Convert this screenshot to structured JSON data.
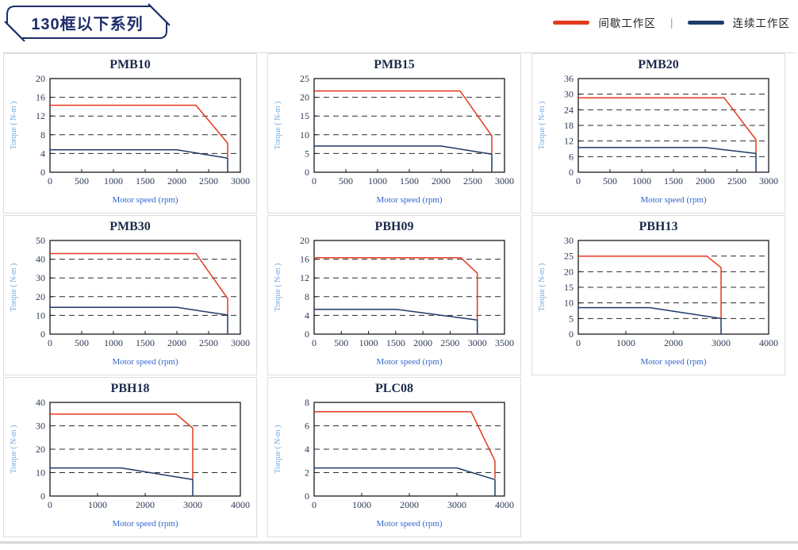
{
  "header": {
    "series_badge": "130框以下系列",
    "legend": {
      "items": [
        {
          "name": "intermittent-zone",
          "label": "间歇工作区",
          "color": "#e23a1f"
        },
        {
          "name": "continuous-zone",
          "label": "连续工作区",
          "color": "#1f3a68"
        }
      ],
      "separator": "|"
    }
  },
  "chart_data": [
    {
      "type": "line",
      "title": "PMB10",
      "xlabel": "Motor speed (rpm)",
      "ylabel": "Torque ( N-m )",
      "xlim": [
        0,
        3000
      ],
      "xticks": [
        0,
        500,
        1000,
        1500,
        2000,
        2500,
        3000
      ],
      "ylim": [
        0,
        20
      ],
      "yticks": [
        0,
        4,
        8,
        12,
        16,
        20
      ],
      "grid": "dashed-horizontal",
      "legend_position": "none",
      "series": [
        {
          "name": "间歇工作区",
          "color": "#e23a1f",
          "points": [
            [
              0,
              14.3
            ],
            [
              2300,
              14.3
            ],
            [
              2800,
              6.2
            ],
            [
              2800,
              3.2
            ]
          ]
        },
        {
          "name": "连续工作区",
          "color": "#1f3a68",
          "points": [
            [
              0,
              4.8
            ],
            [
              2000,
              4.8
            ],
            [
              2800,
              3.0
            ],
            [
              2800,
              0
            ]
          ]
        }
      ]
    },
    {
      "type": "line",
      "title": "PMB15",
      "xlabel": "Motor speed (rpm)",
      "ylabel": "Torque ( N-m )",
      "xlim": [
        0,
        3000
      ],
      "xticks": [
        0,
        500,
        1000,
        1500,
        2000,
        2500,
        3000
      ],
      "ylim": [
        0,
        25
      ],
      "yticks": [
        0,
        5,
        10,
        15,
        20,
        25
      ],
      "grid": "dashed-horizontal",
      "legend_position": "none",
      "series": [
        {
          "name": "间歇工作区",
          "color": "#e23a1f",
          "points": [
            [
              0,
              21.7
            ],
            [
              2300,
              21.7
            ],
            [
              2800,
              9.7
            ],
            [
              2800,
              5.0
            ]
          ]
        },
        {
          "name": "连续工作区",
          "color": "#1f3a68",
          "points": [
            [
              0,
              7.0
            ],
            [
              2000,
              7.0
            ],
            [
              2800,
              4.8
            ],
            [
              2800,
              0
            ]
          ]
        }
      ]
    },
    {
      "type": "line",
      "title": "PMB20",
      "xlabel": "Motor speed (rpm)",
      "ylabel": "Torque ( N-m )",
      "xlim": [
        0,
        3000
      ],
      "xticks": [
        0,
        500,
        1000,
        1500,
        2000,
        2500,
        3000
      ],
      "ylim": [
        0,
        36
      ],
      "yticks": [
        0,
        6,
        12,
        18,
        24,
        30,
        36
      ],
      "grid": "dashed-horizontal",
      "legend_position": "none",
      "series": [
        {
          "name": "间歇工作区",
          "color": "#e23a1f",
          "points": [
            [
              0,
              28.6
            ],
            [
              2300,
              28.6
            ],
            [
              2800,
              12.5
            ],
            [
              2800,
              7.3
            ]
          ]
        },
        {
          "name": "连续工作区",
          "color": "#1f3a68",
          "points": [
            [
              0,
              9.5
            ],
            [
              2000,
              9.5
            ],
            [
              2800,
              7.2
            ],
            [
              2800,
              0
            ]
          ]
        }
      ]
    },
    {
      "type": "line",
      "title": "PMB30",
      "xlabel": "Motor speed (rpm)",
      "ylabel": "Torque ( N-m )",
      "xlim": [
        0,
        3000
      ],
      "xticks": [
        0,
        500,
        1000,
        1500,
        2000,
        2500,
        3000
      ],
      "ylim": [
        0,
        50
      ],
      "yticks": [
        0,
        10,
        20,
        30,
        40,
        50
      ],
      "grid": "dashed-horizontal",
      "legend_position": "none",
      "series": [
        {
          "name": "间歇工作区",
          "color": "#e23a1f",
          "points": [
            [
              0,
              43.0
            ],
            [
              2300,
              43.0
            ],
            [
              2800,
              19.0
            ],
            [
              2800,
              10.3
            ]
          ]
        },
        {
          "name": "连续工作区",
          "color": "#1f3a68",
          "points": [
            [
              0,
              14.3
            ],
            [
              2000,
              14.3
            ],
            [
              2800,
              10.2
            ],
            [
              2800,
              0
            ]
          ]
        }
      ]
    },
    {
      "type": "line",
      "title": "PBH09",
      "xlabel": "Motor speed (rpm)",
      "ylabel": "Torque ( N-m )",
      "xlim": [
        0,
        3500
      ],
      "xticks": [
        0,
        500,
        1000,
        1500,
        2000,
        2500,
        3000,
        3500
      ],
      "ylim": [
        0,
        20
      ],
      "yticks": [
        0,
        4,
        8,
        12,
        16,
        20
      ],
      "grid": "dashed-horizontal",
      "legend_position": "none",
      "series": [
        {
          "name": "间歇工作区",
          "color": "#e23a1f",
          "points": [
            [
              0,
              16.3
            ],
            [
              2700,
              16.3
            ],
            [
              3000,
              13.0
            ],
            [
              3000,
              3.1
            ]
          ]
        },
        {
          "name": "连续工作区",
          "color": "#1f3a68",
          "points": [
            [
              0,
              5.3
            ],
            [
              1500,
              5.3
            ],
            [
              3000,
              3.0
            ],
            [
              3000,
              0
            ]
          ]
        }
      ]
    },
    {
      "type": "line",
      "title": "PBH13",
      "xlabel": "Motor speed (rpm)",
      "ylabel": "Torque ( N-m )",
      "xlim": [
        0,
        4000
      ],
      "xticks": [
        0,
        1000,
        2000,
        3000,
        4000
      ],
      "ylim": [
        0,
        30
      ],
      "yticks": [
        0,
        5,
        10,
        15,
        20,
        25,
        30
      ],
      "grid": "dashed-horizontal",
      "legend_position": "none",
      "series": [
        {
          "name": "间歇工作区",
          "color": "#e23a1f",
          "points": [
            [
              0,
              25.0
            ],
            [
              2700,
              25.0
            ],
            [
              3000,
              21.3
            ],
            [
              3000,
              5.2
            ]
          ]
        },
        {
          "name": "连续工作区",
          "color": "#1f3a68",
          "points": [
            [
              0,
              8.5
            ],
            [
              1500,
              8.5
            ],
            [
              3000,
              5.0
            ],
            [
              3000,
              0
            ]
          ]
        }
      ]
    },
    {
      "type": "line",
      "title": "PBH18",
      "xlabel": "Motor speed (rpm)",
      "ylabel": "Torque ( N-m )",
      "xlim": [
        0,
        4000
      ],
      "xticks": [
        0,
        1000,
        2000,
        3000,
        4000
      ],
      "ylim": [
        0,
        40
      ],
      "yticks": [
        0,
        10,
        20,
        30,
        40
      ],
      "grid": "dashed-horizontal",
      "legend_position": "none",
      "series": [
        {
          "name": "间歇工作区",
          "color": "#e23a1f",
          "points": [
            [
              0,
              35.0
            ],
            [
              2650,
              35.0
            ],
            [
              3000,
              29.0
            ],
            [
              3000,
              7.2
            ]
          ]
        },
        {
          "name": "连续工作区",
          "color": "#1f3a68",
          "points": [
            [
              0,
              12.0
            ],
            [
              1500,
              12.0
            ],
            [
              3000,
              7.0
            ],
            [
              3000,
              0
            ]
          ]
        }
      ]
    },
    {
      "type": "line",
      "title": "PLC08",
      "xlabel": "Motor speed (rpm)",
      "ylabel": "Torque ( N-m )",
      "xlim": [
        0,
        4000
      ],
      "xticks": [
        0,
        1000,
        2000,
        3000,
        4000
      ],
      "ylim": [
        0,
        8
      ],
      "yticks": [
        0,
        2,
        4,
        6,
        8
      ],
      "grid": "dashed-horizontal",
      "legend_position": "none",
      "series": [
        {
          "name": "间歇工作区",
          "color": "#e23a1f",
          "points": [
            [
              0,
              7.2
            ],
            [
              3300,
              7.2
            ],
            [
              3800,
              3.0
            ],
            [
              3800,
              1.5
            ]
          ]
        },
        {
          "name": "连续工作区",
          "color": "#1f3a68",
          "points": [
            [
              0,
              2.4
            ],
            [
              3000,
              2.4
            ],
            [
              3800,
              1.4
            ],
            [
              3800,
              0
            ]
          ]
        }
      ]
    }
  ]
}
